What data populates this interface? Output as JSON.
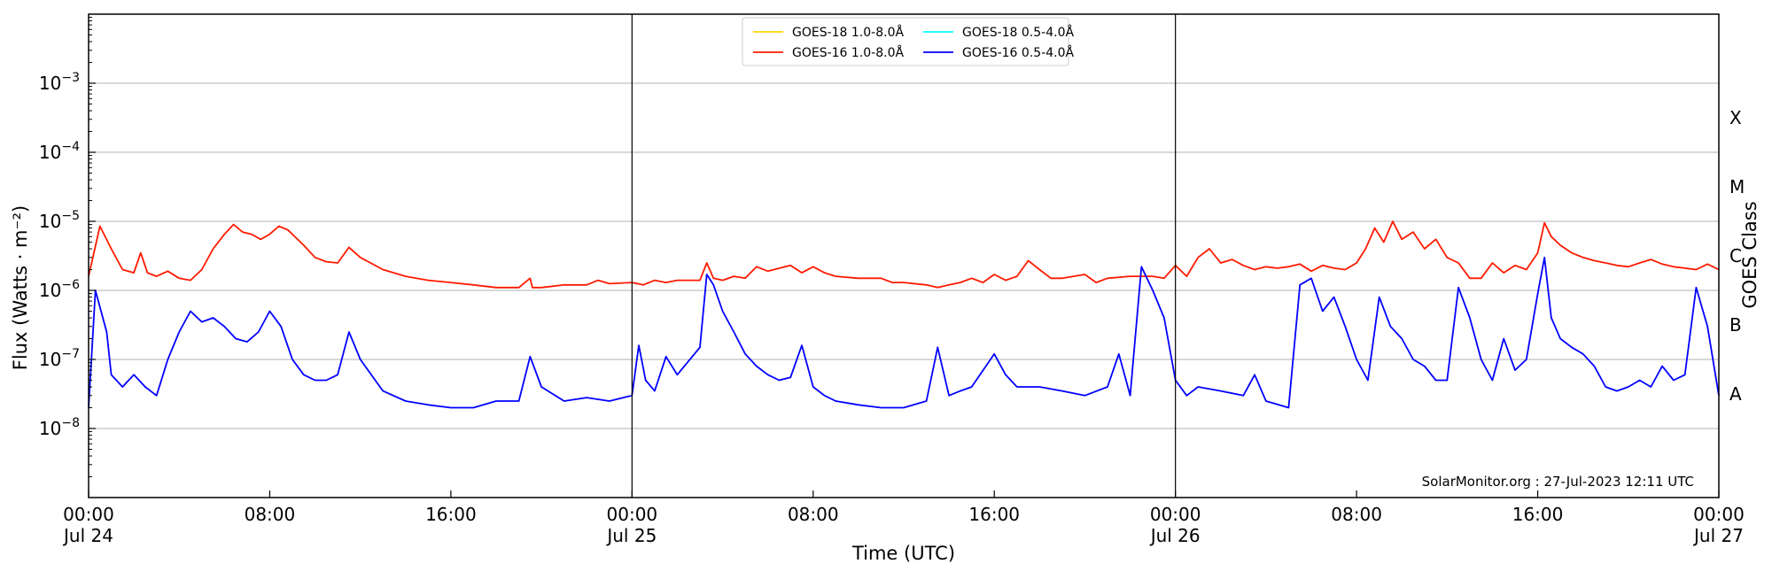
{
  "chart_data": {
    "type": "line",
    "ylabel": "Flux (Watts · m⁻²)",
    "xlabel": "Time (UTC)",
    "right_label": "GOES Class",
    "credit": "SolarMonitor.org : 27-Jul-2023 12:11 UTC",
    "y_scale": "log",
    "ylim": [
      1e-09,
      0.01
    ],
    "xlim_hours": [
      0,
      72
    ],
    "grid": "horizontal at decades",
    "legend_position": "top-center",
    "y_ticks": [
      {
        "value": 1e-08,
        "base": "10",
        "exp": "−8"
      },
      {
        "value": 1e-07,
        "base": "10",
        "exp": "−7"
      },
      {
        "value": 1e-06,
        "base": "10",
        "exp": "−6"
      },
      {
        "value": 1e-05,
        "base": "10",
        "exp": "−5"
      },
      {
        "value": 0.0001,
        "base": "10",
        "exp": "−4"
      },
      {
        "value": 0.001,
        "base": "10",
        "exp": "−3"
      }
    ],
    "x_ticks": [
      {
        "hour": 0,
        "time": "00:00",
        "date": "Jul 24"
      },
      {
        "hour": 8,
        "time": "08:00",
        "date": ""
      },
      {
        "hour": 16,
        "time": "16:00",
        "date": ""
      },
      {
        "hour": 24,
        "time": "00:00",
        "date": "Jul 25"
      },
      {
        "hour": 32,
        "time": "08:00",
        "date": ""
      },
      {
        "hour": 40,
        "time": "16:00",
        "date": ""
      },
      {
        "hour": 48,
        "time": "00:00",
        "date": "Jul 26"
      },
      {
        "hour": 56,
        "time": "08:00",
        "date": ""
      },
      {
        "hour": 64,
        "time": "16:00",
        "date": ""
      },
      {
        "hour": 72,
        "time": "00:00",
        "date": "Jul 27"
      }
    ],
    "day_boundaries_hours": [
      24,
      48
    ],
    "goes_classes": [
      {
        "label": "A",
        "flux": 1e-08
      },
      {
        "label": "B",
        "flux": 1e-07
      },
      {
        "label": "C",
        "flux": 1e-06
      },
      {
        "label": "M",
        "flux": 1e-05
      },
      {
        "label": "X",
        "flux": 0.0001
      }
    ],
    "series": [
      {
        "name": "GOES-18 1.0-8.0Å",
        "color": "#ffd700",
        "points": []
      },
      {
        "name": "GOES-16 1.0-8.0Å",
        "color": "#ff1a00",
        "points": [
          [
            0,
            1.6e-06
          ],
          [
            0.5,
            8.5e-06
          ],
          [
            1,
            4e-06
          ],
          [
            1.5,
            2e-06
          ],
          [
            2,
            1.8e-06
          ],
          [
            2.3,
            3.5e-06
          ],
          [
            2.6,
            1.8e-06
          ],
          [
            3,
            1.6e-06
          ],
          [
            3.5,
            1.9e-06
          ],
          [
            4,
            1.5e-06
          ],
          [
            4.5,
            1.4e-06
          ],
          [
            5,
            2e-06
          ],
          [
            5.5,
            4e-06
          ],
          [
            6,
            6.5e-06
          ],
          [
            6.4,
            9e-06
          ],
          [
            6.8,
            7e-06
          ],
          [
            7.2,
            6.5e-06
          ],
          [
            7.6,
            5.5e-06
          ],
          [
            8,
            6.5e-06
          ],
          [
            8.4,
            8.5e-06
          ],
          [
            8.8,
            7.5e-06
          ],
          [
            9.5,
            4.5e-06
          ],
          [
            10,
            3e-06
          ],
          [
            10.5,
            2.6e-06
          ],
          [
            11,
            2.5e-06
          ],
          [
            11.5,
            4.2e-06
          ],
          [
            12,
            3e-06
          ],
          [
            13,
            2e-06
          ],
          [
            14,
            1.6e-06
          ],
          [
            15,
            1.4e-06
          ],
          [
            16,
            1.3e-06
          ],
          [
            17,
            1.2e-06
          ],
          [
            18,
            1.1e-06
          ],
          [
            19,
            1.1e-06
          ],
          [
            19.5,
            1.5e-06
          ],
          [
            19.6,
            1.1e-06
          ],
          [
            20,
            1.1e-06
          ],
          [
            21,
            1.2e-06
          ],
          [
            22,
            1.2e-06
          ],
          [
            22.5,
            1.4e-06
          ],
          [
            23,
            1.25e-06
          ],
          [
            24,
            1.3e-06
          ],
          [
            24.5,
            1.2e-06
          ],
          [
            25,
            1.4e-06
          ],
          [
            25.5,
            1.3e-06
          ],
          [
            26,
            1.4e-06
          ],
          [
            27,
            1.4e-06
          ],
          [
            27.3,
            2.5e-06
          ],
          [
            27.6,
            1.5e-06
          ],
          [
            28,
            1.4e-06
          ],
          [
            28.5,
            1.6e-06
          ],
          [
            29,
            1.5e-06
          ],
          [
            29.5,
            2.2e-06
          ],
          [
            30,
            1.9e-06
          ],
          [
            31,
            2.3e-06
          ],
          [
            31.5,
            1.8e-06
          ],
          [
            32,
            2.2e-06
          ],
          [
            32.5,
            1.8e-06
          ],
          [
            33,
            1.6e-06
          ],
          [
            34,
            1.5e-06
          ],
          [
            35,
            1.5e-06
          ],
          [
            35.5,
            1.3e-06
          ],
          [
            36,
            1.3e-06
          ],
          [
            37,
            1.2e-06
          ],
          [
            37.5,
            1.1e-06
          ],
          [
            38,
            1.2e-06
          ],
          [
            38.5,
            1.3e-06
          ],
          [
            39,
            1.5e-06
          ],
          [
            39.5,
            1.3e-06
          ],
          [
            40,
            1.7e-06
          ],
          [
            40.5,
            1.4e-06
          ],
          [
            41,
            1.6e-06
          ],
          [
            41.5,
            2.7e-06
          ],
          [
            42,
            2e-06
          ],
          [
            42.5,
            1.5e-06
          ],
          [
            43,
            1.5e-06
          ],
          [
            44,
            1.7e-06
          ],
          [
            44.5,
            1.3e-06
          ],
          [
            45,
            1.5e-06
          ],
          [
            46,
            1.6e-06
          ],
          [
            47,
            1.6e-06
          ],
          [
            47.5,
            1.5e-06
          ],
          [
            48,
            2.3e-06
          ],
          [
            48.5,
            1.6e-06
          ],
          [
            49,
            3e-06
          ],
          [
            49.5,
            4e-06
          ],
          [
            50,
            2.5e-06
          ],
          [
            50.5,
            2.8e-06
          ],
          [
            51,
            2.3e-06
          ],
          [
            51.5,
            2e-06
          ],
          [
            52,
            2.2e-06
          ],
          [
            52.5,
            2.1e-06
          ],
          [
            53,
            2.2e-06
          ],
          [
            53.5,
            2.4e-06
          ],
          [
            54,
            1.9e-06
          ],
          [
            54.5,
            2.3e-06
          ],
          [
            55,
            2.1e-06
          ],
          [
            55.5,
            2e-06
          ],
          [
            56,
            2.5e-06
          ],
          [
            56.4,
            4e-06
          ],
          [
            56.8,
            8e-06
          ],
          [
            57.2,
            5e-06
          ],
          [
            57.6,
            1e-05
          ],
          [
            58,
            5.5e-06
          ],
          [
            58.5,
            7e-06
          ],
          [
            59,
            4e-06
          ],
          [
            59.5,
            5.5e-06
          ],
          [
            60,
            3e-06
          ],
          [
            60.5,
            2.5e-06
          ],
          [
            61,
            1.5e-06
          ],
          [
            61.5,
            1.5e-06
          ],
          [
            62,
            2.5e-06
          ],
          [
            62.5,
            1.8e-06
          ],
          [
            63,
            2.3e-06
          ],
          [
            63.5,
            2e-06
          ],
          [
            64,
            3.5e-06
          ],
          [
            64.3,
            9.5e-06
          ],
          [
            64.6,
            6e-06
          ],
          [
            65,
            4.5e-06
          ],
          [
            65.5,
            3.5e-06
          ],
          [
            66,
            3e-06
          ],
          [
            66.5,
            2.7e-06
          ],
          [
            67,
            2.5e-06
          ],
          [
            67.5,
            2.3e-06
          ],
          [
            68,
            2.2e-06
          ],
          [
            68.5,
            2.5e-06
          ],
          [
            69,
            2.8e-06
          ],
          [
            69.5,
            2.4e-06
          ],
          [
            70,
            2.2e-06
          ],
          [
            70.5,
            2.1e-06
          ],
          [
            71,
            2e-06
          ],
          [
            71.5,
            2.4e-06
          ],
          [
            72,
            2e-06
          ]
        ]
      },
      {
        "name": "GOES-18 0.5-4.0Å",
        "color": "#00ffff",
        "points": []
      },
      {
        "name": "GOES-16 0.5-4.0Å",
        "color": "#0000ff",
        "points": [
          [
            0,
            2e-08
          ],
          [
            0.3,
            1e-06
          ],
          [
            0.8,
            2.5e-07
          ],
          [
            1,
            6e-08
          ],
          [
            1.5,
            4e-08
          ],
          [
            2,
            6e-08
          ],
          [
            2.5,
            4e-08
          ],
          [
            3,
            3e-08
          ],
          [
            3.5,
            1e-07
          ],
          [
            4,
            2.5e-07
          ],
          [
            4.5,
            5e-07
          ],
          [
            5,
            3.5e-07
          ],
          [
            5.5,
            4e-07
          ],
          [
            6,
            3e-07
          ],
          [
            6.5,
            2e-07
          ],
          [
            7,
            1.8e-07
          ],
          [
            7.5,
            2.5e-07
          ],
          [
            8,
            5e-07
          ],
          [
            8.5,
            3e-07
          ],
          [
            9,
            1e-07
          ],
          [
            9.5,
            6e-08
          ],
          [
            10,
            5e-08
          ],
          [
            10.5,
            5e-08
          ],
          [
            11,
            6e-08
          ],
          [
            11.5,
            2.5e-07
          ],
          [
            12,
            1e-07
          ],
          [
            13,
            3.5e-08
          ],
          [
            14,
            2.5e-08
          ],
          [
            15,
            2.2e-08
          ],
          [
            16,
            2e-08
          ],
          [
            17,
            2e-08
          ],
          [
            18,
            2.5e-08
          ],
          [
            19,
            2.5e-08
          ],
          [
            19.5,
            1.1e-07
          ],
          [
            20,
            4e-08
          ],
          [
            21,
            2.5e-08
          ],
          [
            22,
            2.8e-08
          ],
          [
            23,
            2.5e-08
          ],
          [
            24,
            3e-08
          ],
          [
            24.3,
            1.6e-07
          ],
          [
            24.6,
            5e-08
          ],
          [
            25,
            3.5e-08
          ],
          [
            25.5,
            1.1e-07
          ],
          [
            26,
            6e-08
          ],
          [
            27,
            1.5e-07
          ],
          [
            27.3,
            1.7e-06
          ],
          [
            27.6,
            1.2e-06
          ],
          [
            28,
            5e-07
          ],
          [
            28.5,
            2.5e-07
          ],
          [
            29,
            1.2e-07
          ],
          [
            29.5,
            8e-08
          ],
          [
            30,
            6e-08
          ],
          [
            30.5,
            5e-08
          ],
          [
            31,
            5.5e-08
          ],
          [
            31.5,
            1.6e-07
          ],
          [
            32,
            4e-08
          ],
          [
            32.5,
            3e-08
          ],
          [
            33,
            2.5e-08
          ],
          [
            34,
            2.2e-08
          ],
          [
            35,
            2e-08
          ],
          [
            36,
            2e-08
          ],
          [
            37,
            2.5e-08
          ],
          [
            37.5,
            1.5e-07
          ],
          [
            38,
            3e-08
          ],
          [
            38.5,
            3.5e-08
          ],
          [
            39,
            4e-08
          ],
          [
            40,
            1.2e-07
          ],
          [
            40.5,
            6e-08
          ],
          [
            41,
            4e-08
          ],
          [
            42,
            4e-08
          ],
          [
            43,
            3.5e-08
          ],
          [
            44,
            3e-08
          ],
          [
            45,
            4e-08
          ],
          [
            45.5,
            1.2e-07
          ],
          [
            46,
            3e-08
          ],
          [
            46.5,
            2.2e-06
          ],
          [
            47,
            1e-06
          ],
          [
            47.5,
            4e-07
          ],
          [
            48,
            5e-08
          ],
          [
            48.5,
            3e-08
          ],
          [
            49,
            4e-08
          ],
          [
            50,
            3.5e-08
          ],
          [
            51,
            3e-08
          ],
          [
            51.5,
            6e-08
          ],
          [
            52,
            2.5e-08
          ],
          [
            53,
            2e-08
          ],
          [
            53.5,
            1.2e-06
          ],
          [
            54,
            1.5e-06
          ],
          [
            54.5,
            5e-07
          ],
          [
            55,
            8e-07
          ],
          [
            55.5,
            3e-07
          ],
          [
            56,
            1e-07
          ],
          [
            56.5,
            5e-08
          ],
          [
            57,
            8e-07
          ],
          [
            57.5,
            3e-07
          ],
          [
            58,
            2e-07
          ],
          [
            58.5,
            1e-07
          ],
          [
            59,
            8e-08
          ],
          [
            59.5,
            5e-08
          ],
          [
            60,
            5e-08
          ],
          [
            60.5,
            1.1e-06
          ],
          [
            61,
            4e-07
          ],
          [
            61.5,
            1e-07
          ],
          [
            62,
            5e-08
          ],
          [
            62.5,
            2e-07
          ],
          [
            63,
            7e-08
          ],
          [
            63.5,
            1e-07
          ],
          [
            64,
            9e-07
          ],
          [
            64.3,
            3e-06
          ],
          [
            64.6,
            4e-07
          ],
          [
            65,
            2e-07
          ],
          [
            65.5,
            1.5e-07
          ],
          [
            66,
            1.2e-07
          ],
          [
            66.5,
            8e-08
          ],
          [
            67,
            4e-08
          ],
          [
            67.5,
            3.5e-08
          ],
          [
            68,
            4e-08
          ],
          [
            68.5,
            5e-08
          ],
          [
            69,
            4e-08
          ],
          [
            69.5,
            8e-08
          ],
          [
            70,
            5e-08
          ],
          [
            70.5,
            6e-08
          ],
          [
            71,
            1.1e-06
          ],
          [
            71.5,
            3e-07
          ],
          [
            72,
            3e-08
          ]
        ]
      }
    ]
  }
}
